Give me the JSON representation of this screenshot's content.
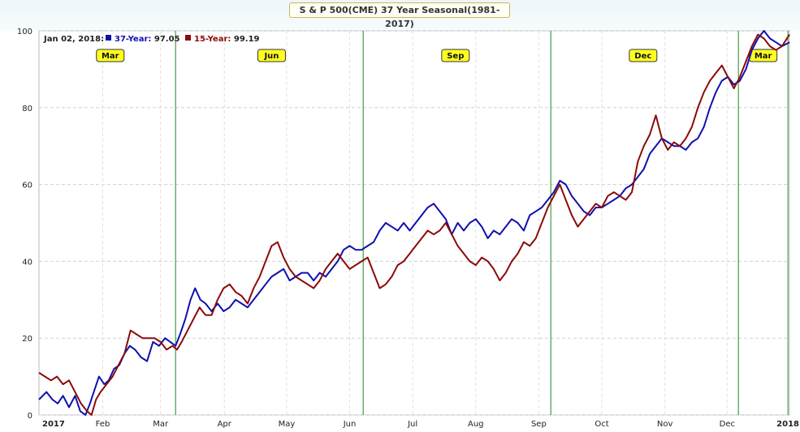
{
  "title": "S & P 500(CME) 37 Year Seasonal(1981-2017)",
  "legend": {
    "date": "Jan 02, 2018:",
    "items": [
      {
        "label": "37-Year:",
        "value": "97.05",
        "color": "#1010b0"
      },
      {
        "label": "15-Year:",
        "value": "99.19",
        "color": "#8b0a0a"
      }
    ]
  },
  "chart_data": {
    "type": "line",
    "ylim": [
      0,
      100
    ],
    "y_ticks": [
      0,
      20,
      40,
      60,
      80,
      100
    ],
    "x_ticks": [
      {
        "label": "2017",
        "pos": 0.0,
        "bold": true,
        "color": "#8b0a0a"
      },
      {
        "label": "Feb",
        "pos": 0.085
      },
      {
        "label": "Mar",
        "pos": 0.162
      },
      {
        "label": "Apr",
        "pos": 0.247
      },
      {
        "label": "May",
        "pos": 0.33
      },
      {
        "label": "Jun",
        "pos": 0.414
      },
      {
        "label": "Jul",
        "pos": 0.498
      },
      {
        "label": "Aug",
        "pos": 0.582
      },
      {
        "label": "Sep",
        "pos": 0.666
      },
      {
        "label": "Oct",
        "pos": 0.75
      },
      {
        "label": "Nov",
        "pos": 0.834
      },
      {
        "label": "Dec",
        "pos": 0.917
      },
      {
        "label": "2018",
        "pos": 1.0,
        "bold": true,
        "color": "#8b0a0a"
      }
    ],
    "markers": [
      {
        "label": "Mar",
        "label_pos": 0.095,
        "line_pos": 0.182
      },
      {
        "label": "Jun",
        "label_pos": 0.31,
        "line_pos": 0.432
      },
      {
        "label": "Sep",
        "label_pos": 0.555,
        "line_pos": 0.682
      },
      {
        "label": "Dec",
        "label_pos": 0.805,
        "line_pos": 0.932
      },
      {
        "label": "Mar",
        "label_pos": 0.965,
        "line_pos": 0.998
      }
    ],
    "series": [
      {
        "name": "37-Year",
        "color": "#1010b0",
        "points": [
          [
            0.0,
            4
          ],
          [
            0.01,
            6
          ],
          [
            0.018,
            4
          ],
          [
            0.025,
            3
          ],
          [
            0.032,
            5
          ],
          [
            0.04,
            2
          ],
          [
            0.048,
            5
          ],
          [
            0.055,
            1
          ],
          [
            0.062,
            0
          ],
          [
            0.068,
            3
          ],
          [
            0.073,
            6
          ],
          [
            0.08,
            10
          ],
          [
            0.087,
            8
          ],
          [
            0.093,
            9
          ],
          [
            0.1,
            12
          ],
          [
            0.107,
            13
          ],
          [
            0.114,
            16
          ],
          [
            0.121,
            18
          ],
          [
            0.128,
            17
          ],
          [
            0.136,
            15
          ],
          [
            0.144,
            14
          ],
          [
            0.152,
            19
          ],
          [
            0.16,
            18
          ],
          [
            0.168,
            20
          ],
          [
            0.175,
            19
          ],
          [
            0.182,
            18
          ],
          [
            0.188,
            21
          ],
          [
            0.195,
            25
          ],
          [
            0.202,
            30
          ],
          [
            0.208,
            33
          ],
          [
            0.215,
            30
          ],
          [
            0.222,
            29
          ],
          [
            0.23,
            27
          ],
          [
            0.238,
            29
          ],
          [
            0.246,
            27
          ],
          [
            0.254,
            28
          ],
          [
            0.262,
            30
          ],
          [
            0.27,
            29
          ],
          [
            0.278,
            28
          ],
          [
            0.286,
            30
          ],
          [
            0.294,
            32
          ],
          [
            0.302,
            34
          ],
          [
            0.31,
            36
          ],
          [
            0.318,
            37
          ],
          [
            0.326,
            38
          ],
          [
            0.334,
            35
          ],
          [
            0.342,
            36
          ],
          [
            0.35,
            37
          ],
          [
            0.358,
            37
          ],
          [
            0.366,
            35
          ],
          [
            0.374,
            37
          ],
          [
            0.382,
            36
          ],
          [
            0.39,
            38
          ],
          [
            0.398,
            40
          ],
          [
            0.406,
            43
          ],
          [
            0.414,
            44
          ],
          [
            0.422,
            43
          ],
          [
            0.43,
            43
          ],
          [
            0.438,
            44
          ],
          [
            0.446,
            45
          ],
          [
            0.454,
            48
          ],
          [
            0.462,
            50
          ],
          [
            0.47,
            49
          ],
          [
            0.478,
            48
          ],
          [
            0.486,
            50
          ],
          [
            0.494,
            48
          ],
          [
            0.502,
            50
          ],
          [
            0.51,
            52
          ],
          [
            0.518,
            54
          ],
          [
            0.526,
            55
          ],
          [
            0.534,
            53
          ],
          [
            0.542,
            51
          ],
          [
            0.55,
            47
          ],
          [
            0.558,
            50
          ],
          [
            0.566,
            48
          ],
          [
            0.574,
            50
          ],
          [
            0.582,
            51
          ],
          [
            0.59,
            49
          ],
          [
            0.598,
            46
          ],
          [
            0.606,
            48
          ],
          [
            0.614,
            47
          ],
          [
            0.622,
            49
          ],
          [
            0.63,
            51
          ],
          [
            0.638,
            50
          ],
          [
            0.646,
            48
          ],
          [
            0.654,
            52
          ],
          [
            0.662,
            53
          ],
          [
            0.67,
            54
          ],
          [
            0.678,
            56
          ],
          [
            0.686,
            58
          ],
          [
            0.694,
            61
          ],
          [
            0.702,
            60
          ],
          [
            0.71,
            57
          ],
          [
            0.718,
            55
          ],
          [
            0.726,
            53
          ],
          [
            0.734,
            52
          ],
          [
            0.742,
            54
          ],
          [
            0.75,
            54
          ],
          [
            0.758,
            55
          ],
          [
            0.766,
            56
          ],
          [
            0.774,
            57
          ],
          [
            0.782,
            59
          ],
          [
            0.79,
            60
          ],
          [
            0.798,
            62
          ],
          [
            0.806,
            64
          ],
          [
            0.814,
            68
          ],
          [
            0.822,
            70
          ],
          [
            0.83,
            72
          ],
          [
            0.838,
            71
          ],
          [
            0.846,
            70
          ],
          [
            0.854,
            70
          ],
          [
            0.862,
            69
          ],
          [
            0.87,
            71
          ],
          [
            0.878,
            72
          ],
          [
            0.886,
            75
          ],
          [
            0.894,
            80
          ],
          [
            0.902,
            84
          ],
          [
            0.91,
            87
          ],
          [
            0.918,
            88
          ],
          [
            0.926,
            86
          ],
          [
            0.934,
            87
          ],
          [
            0.942,
            90
          ],
          [
            0.95,
            95
          ],
          [
            0.958,
            98
          ],
          [
            0.966,
            100
          ],
          [
            0.974,
            98
          ],
          [
            0.982,
            97
          ],
          [
            0.99,
            96
          ],
          [
            1.0,
            97
          ]
        ]
      },
      {
        "name": "15-Year",
        "color": "#8b0a0a",
        "points": [
          [
            0.0,
            11
          ],
          [
            0.008,
            10
          ],
          [
            0.016,
            9
          ],
          [
            0.024,
            10
          ],
          [
            0.032,
            8
          ],
          [
            0.04,
            9
          ],
          [
            0.048,
            6
          ],
          [
            0.056,
            3
          ],
          [
            0.064,
            1
          ],
          [
            0.07,
            0
          ],
          [
            0.076,
            4
          ],
          [
            0.082,
            6
          ],
          [
            0.09,
            8
          ],
          [
            0.098,
            10
          ],
          [
            0.106,
            13
          ],
          [
            0.114,
            16
          ],
          [
            0.122,
            22
          ],
          [
            0.13,
            21
          ],
          [
            0.138,
            20
          ],
          [
            0.146,
            20
          ],
          [
            0.154,
            20
          ],
          [
            0.162,
            19
          ],
          [
            0.17,
            17
          ],
          [
            0.178,
            18
          ],
          [
            0.184,
            17
          ],
          [
            0.19,
            19
          ],
          [
            0.198,
            22
          ],
          [
            0.206,
            25
          ],
          [
            0.214,
            28
          ],
          [
            0.222,
            26
          ],
          [
            0.23,
            26
          ],
          [
            0.238,
            30
          ],
          [
            0.246,
            33
          ],
          [
            0.254,
            34
          ],
          [
            0.262,
            32
          ],
          [
            0.27,
            31
          ],
          [
            0.278,
            29
          ],
          [
            0.286,
            33
          ],
          [
            0.294,
            36
          ],
          [
            0.302,
            40
          ],
          [
            0.31,
            44
          ],
          [
            0.318,
            45
          ],
          [
            0.326,
            41
          ],
          [
            0.334,
            38
          ],
          [
            0.342,
            36
          ],
          [
            0.35,
            35
          ],
          [
            0.358,
            34
          ],
          [
            0.366,
            33
          ],
          [
            0.374,
            35
          ],
          [
            0.382,
            38
          ],
          [
            0.39,
            40
          ],
          [
            0.398,
            42
          ],
          [
            0.406,
            40
          ],
          [
            0.414,
            38
          ],
          [
            0.422,
            39
          ],
          [
            0.43,
            40
          ],
          [
            0.438,
            41
          ],
          [
            0.446,
            37
          ],
          [
            0.454,
            33
          ],
          [
            0.462,
            34
          ],
          [
            0.47,
            36
          ],
          [
            0.478,
            39
          ],
          [
            0.486,
            40
          ],
          [
            0.494,
            42
          ],
          [
            0.502,
            44
          ],
          [
            0.51,
            46
          ],
          [
            0.518,
            48
          ],
          [
            0.526,
            47
          ],
          [
            0.534,
            48
          ],
          [
            0.542,
            50
          ],
          [
            0.55,
            47
          ],
          [
            0.558,
            44
          ],
          [
            0.566,
            42
          ],
          [
            0.574,
            40
          ],
          [
            0.582,
            39
          ],
          [
            0.59,
            41
          ],
          [
            0.598,
            40
          ],
          [
            0.606,
            38
          ],
          [
            0.614,
            35
          ],
          [
            0.622,
            37
          ],
          [
            0.63,
            40
          ],
          [
            0.638,
            42
          ],
          [
            0.646,
            45
          ],
          [
            0.654,
            44
          ],
          [
            0.662,
            46
          ],
          [
            0.67,
            50
          ],
          [
            0.678,
            54
          ],
          [
            0.686,
            57
          ],
          [
            0.694,
            60
          ],
          [
            0.702,
            56
          ],
          [
            0.71,
            52
          ],
          [
            0.718,
            49
          ],
          [
            0.726,
            51
          ],
          [
            0.734,
            53
          ],
          [
            0.742,
            55
          ],
          [
            0.75,
            54
          ],
          [
            0.758,
            57
          ],
          [
            0.766,
            58
          ],
          [
            0.774,
            57
          ],
          [
            0.782,
            56
          ],
          [
            0.79,
            58
          ],
          [
            0.798,
            66
          ],
          [
            0.806,
            70
          ],
          [
            0.814,
            73
          ],
          [
            0.822,
            78
          ],
          [
            0.83,
            72
          ],
          [
            0.838,
            69
          ],
          [
            0.846,
            71
          ],
          [
            0.854,
            70
          ],
          [
            0.862,
            72
          ],
          [
            0.87,
            75
          ],
          [
            0.878,
            80
          ],
          [
            0.886,
            84
          ],
          [
            0.894,
            87
          ],
          [
            0.902,
            89
          ],
          [
            0.91,
            91
          ],
          [
            0.918,
            88
          ],
          [
            0.926,
            85
          ],
          [
            0.934,
            88
          ],
          [
            0.942,
            92
          ],
          [
            0.95,
            96
          ],
          [
            0.958,
            99
          ],
          [
            0.966,
            98
          ],
          [
            0.974,
            96
          ],
          [
            0.982,
            95
          ],
          [
            0.99,
            96
          ],
          [
            1.0,
            99
          ]
        ]
      }
    ]
  }
}
